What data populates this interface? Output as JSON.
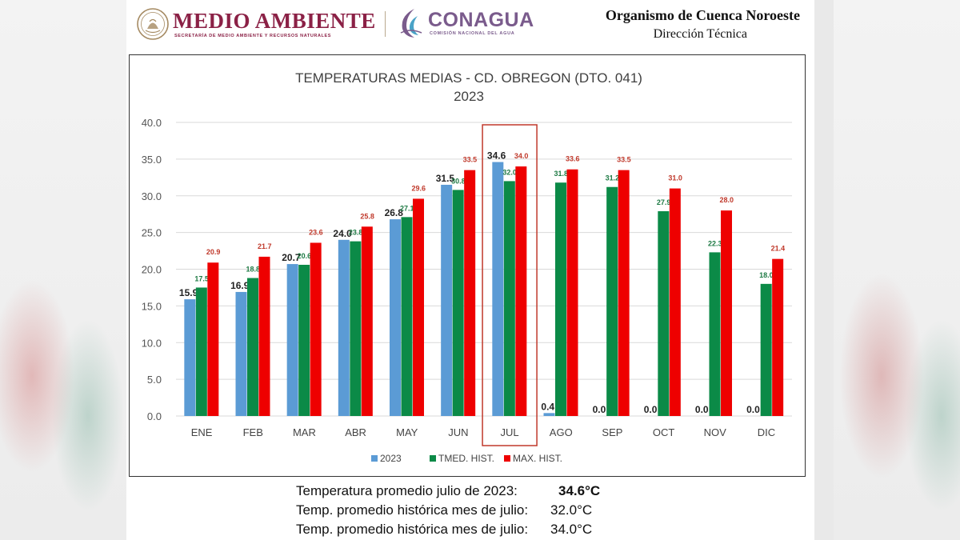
{
  "header": {
    "brand_primary": "MEDIO AMBIENTE",
    "brand_primary_sub": "SECRETARÍA DE MEDIO AMBIENTE Y RECURSOS NATURALES",
    "brand_secondary": "CONAGUA",
    "brand_secondary_sub": "COMISIÓN NACIONAL DEL AGUA",
    "org_title": "Organismo de Cuenca Noroeste",
    "org_subtitle": "Dirección Técnica",
    "icons": [
      "national-seal-icon",
      "conagua-logo-icon"
    ]
  },
  "chart_data": {
    "type": "bar",
    "title": "TEMPERATURAS MEDIAS - CD. OBREGON (DTO. 041)",
    "subtitle": "2023",
    "categories": [
      "ENE",
      "FEB",
      "MAR",
      "ABR",
      "MAY",
      "JUN",
      "JUL",
      "AGO",
      "SEP",
      "OCT",
      "NOV",
      "DIC"
    ],
    "yticks": [
      "0.0",
      "5.0",
      "10.0",
      "15.0",
      "20.0",
      "25.0",
      "30.0",
      "35.0",
      "40.0"
    ],
    "ylim": [
      0,
      40
    ],
    "grid": true,
    "legend_position": "bottom-center",
    "highlight_category": "JUL",
    "highlight_color": "#c0392b",
    "series": [
      {
        "name": "2023",
        "color": "#5b9bd5",
        "label_color": "#222222",
        "values": [
          15.9,
          16.9,
          20.7,
          24.0,
          26.8,
          31.5,
          34.6,
          0.4,
          0.0,
          0.0,
          0.0,
          0.0
        ],
        "labels": [
          "15.9",
          "16.9",
          "20.7",
          "24.0",
          "26.8",
          "31.5",
          "34.6",
          "0.4",
          "0.0",
          "0.0",
          "0.0",
          "0.0"
        ]
      },
      {
        "name": "TMED. HIST.",
        "color": "#0b8a47",
        "label_color": "#1e7a44",
        "values": [
          17.5,
          18.8,
          20.6,
          23.8,
          27.1,
          30.8,
          32.0,
          31.8,
          31.2,
          27.9,
          22.3,
          18.0
        ],
        "labels": [
          "17.5",
          "18.8",
          "20.6",
          "23.8",
          "27.1",
          "30.8",
          "32.0",
          "31.8",
          "31.2",
          "27.9",
          "22.3",
          "18.0"
        ]
      },
      {
        "name": "MAX. HIST.",
        "color": "#ee0000",
        "label_color": "#c0392b",
        "values": [
          20.9,
          21.7,
          23.6,
          25.8,
          29.6,
          33.5,
          34.0,
          33.6,
          33.5,
          31.0,
          28.0,
          21.4
        ],
        "labels": [
          "20.9",
          "21.7",
          "23.6",
          "25.8",
          "29.6",
          "33.5",
          "34.0",
          "33.6",
          "33.5",
          "31.0",
          "28.0",
          "21.4"
        ]
      }
    ]
  },
  "notes": [
    {
      "label": "Temperatura promedio julio de 2023:",
      "value": "34.6°C",
      "bold": true
    },
    {
      "label": "Temp. promedio histórica mes de julio:",
      "value": "32.0°C",
      "bold": false
    },
    {
      "label": "Temp. promedio histórica mes de julio:",
      "value": "34.0°C",
      "bold": false
    }
  ]
}
